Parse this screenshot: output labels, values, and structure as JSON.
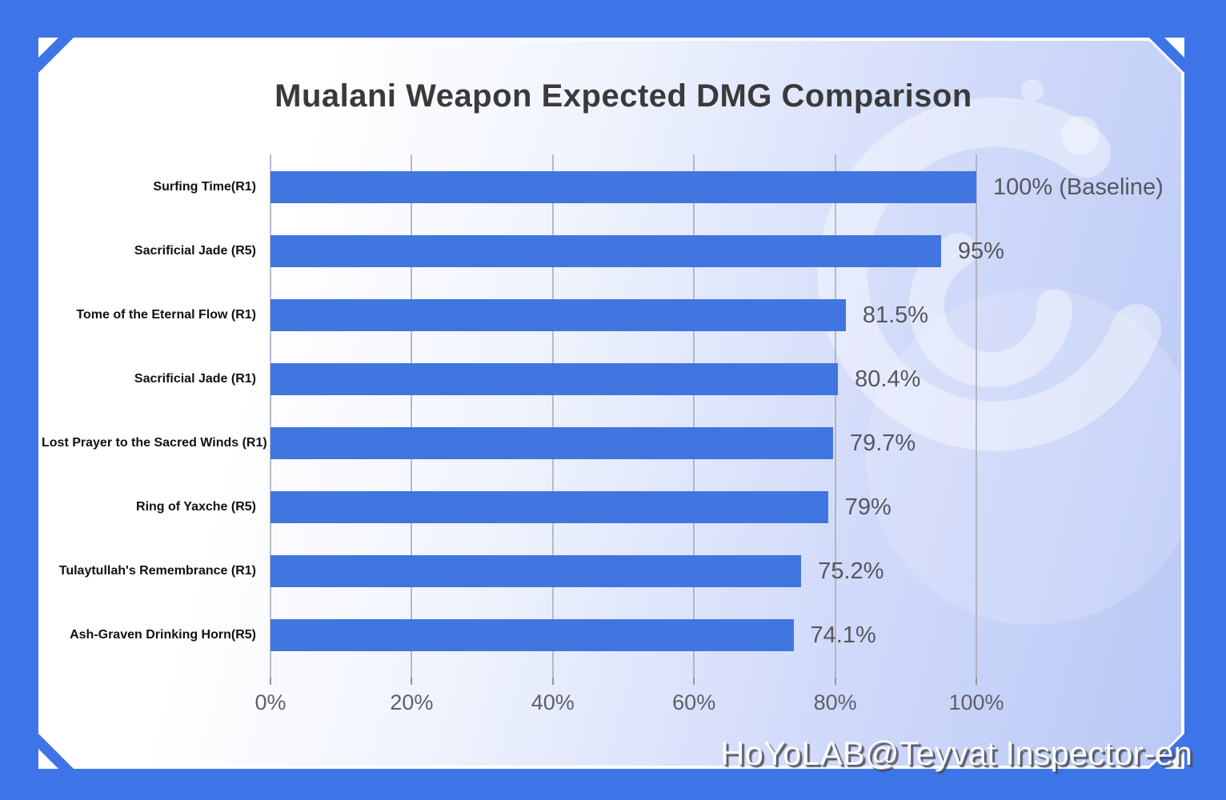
{
  "watermark": "HoYoLAB@Teyvat Inspector-en",
  "chart_data": {
    "type": "bar",
    "orientation": "horizontal",
    "title": "Mualani Weapon Expected DMG Comparison",
    "categories": [
      "Surfing Time(R1)",
      "Sacrificial Jade (R5)",
      "Tome of the Eternal Flow (R1)",
      "Sacrificial Jade (R1)",
      "Lost Prayer to the Sacred Winds (R1)",
      "Ring of Yaxche (R5)",
      "Tulaytullah's Remembrance (R1)",
      "Ash-Graven Drinking Horn(R5)"
    ],
    "values": [
      100,
      95,
      81.5,
      80.4,
      79.7,
      79,
      75.2,
      74.1
    ],
    "value_labels": [
      "100% (Baseline)",
      "95%",
      "81.5%",
      "80.4%",
      "79.7%",
      "79%",
      "75.2%",
      "74.1%"
    ],
    "x_ticks": [
      "0%",
      "20%",
      "40%",
      "60%",
      "80%",
      "100%"
    ],
    "xlabel": "",
    "ylabel": "",
    "xlim": [
      0,
      100
    ],
    "grid": true,
    "legend": false,
    "bar_color": "#4175E0"
  },
  "colors": {
    "frame_blue": "#3D74E7",
    "bar_blue": "#4175E0",
    "grid_line": "#A7ABB4",
    "title_text": "#3A3A3C",
    "category_text": "#101114",
    "value_text": "#56575E",
    "tick_text": "#5E6066",
    "card_gradient_left": "#FFFFFF",
    "card_gradient_right": "#B9C8F5"
  }
}
